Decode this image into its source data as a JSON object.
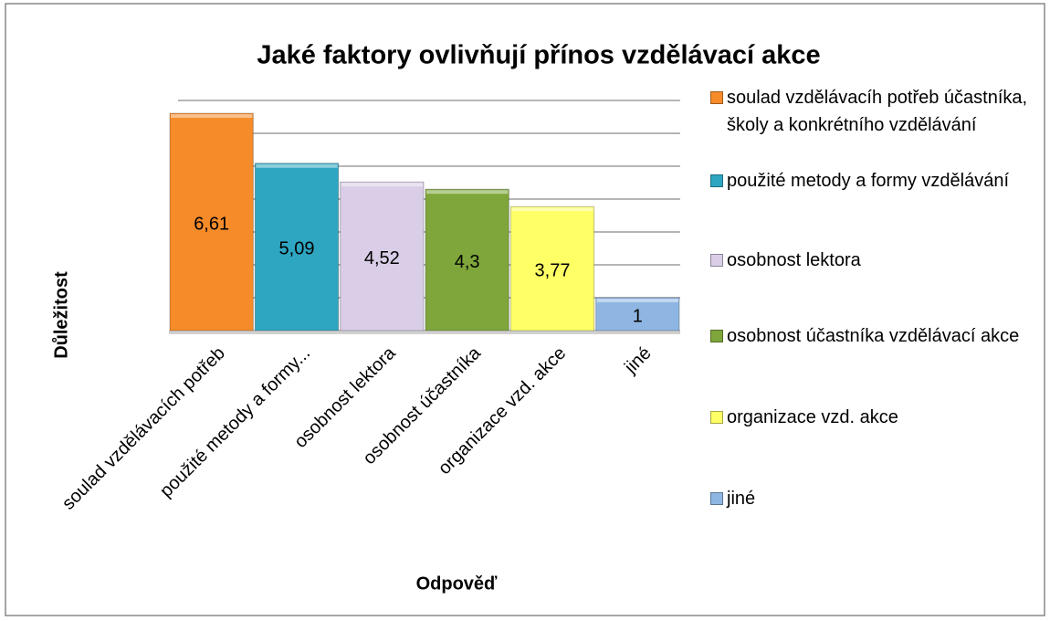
{
  "chart_data": {
    "type": "bar",
    "title": "Jaké faktory ovlivňují přínos vzdělávací akce",
    "x_label": "Odpověď",
    "y_label": "Důležitost",
    "categories": [
      "soulad vzdělávacích potřeb",
      "použité metody a formy...",
      "osobnost lektora",
      "osobnost účastníka",
      "organizace vzd. akce",
      "jiné"
    ],
    "values": [
      6.61,
      5.09,
      4.52,
      4.3,
      3.77,
      1
    ],
    "value_labels": [
      "6,61",
      "5,09",
      "4,52",
      "4,3",
      "3,77",
      "1"
    ],
    "colors": [
      "#f68b2a",
      "#2ea6c2",
      "#d9cde7",
      "#7fa63b",
      "#ffff66",
      "#8fb6e3"
    ],
    "legend_labels": [
      "soulad vzdělávacíh potřeb účastníka, školy a konkrétního vzdělávání",
      "použité metody a formy vzdělávání",
      "osobnost lektora",
      "osobnost účastníka vzdělávací akce",
      "organizace vzd. akce",
      "jiné"
    ],
    "ylim": [
      0,
      7
    ],
    "yticks": [
      0,
      1,
      2,
      3,
      4,
      5,
      6,
      7
    ],
    "grid": true
  }
}
